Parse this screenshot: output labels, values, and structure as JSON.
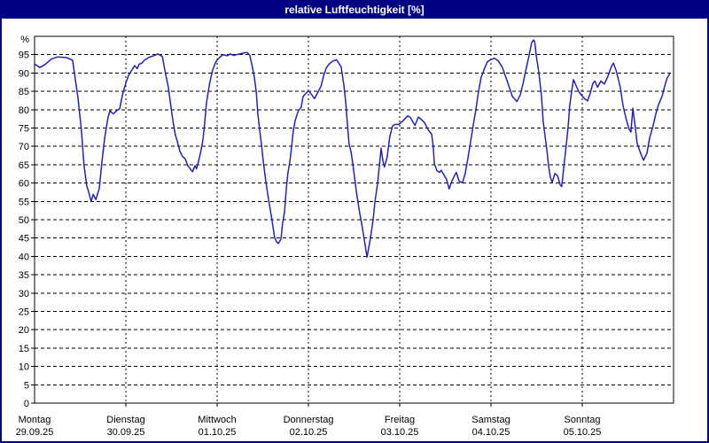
{
  "window": {
    "title": "relative Luftfeuchtigkeit [%]",
    "colors": {
      "title_bar_bg": "#000080",
      "title_text": "#ffffff",
      "window_border": "#000080",
      "plot_bg": "#ffffff",
      "grid": "#000000",
      "axis": "#000000",
      "curve": "#2222bb"
    }
  },
  "chart_data": {
    "type": "line",
    "title": "relative Luftfeuchtigkeit [%]",
    "xlabel": "",
    "ylabel": "%",
    "ylim": [
      0,
      100
    ],
    "yticks": [
      0,
      5,
      10,
      15,
      20,
      25,
      30,
      35,
      40,
      45,
      50,
      55,
      60,
      65,
      70,
      75,
      80,
      85,
      90,
      95
    ],
    "grid": true,
    "legend": "none",
    "x_axis": {
      "hours_per_day": 24,
      "range_hours": [
        0,
        168
      ],
      "days": [
        {
          "label": "Montag",
          "date": "29.09.25"
        },
        {
          "label": "Dienstag",
          "date": "30.09.25"
        },
        {
          "label": "Mittwoch",
          "date": "01.10.25"
        },
        {
          "label": "Donnerstag",
          "date": "02.10.25"
        },
        {
          "label": "Freitag",
          "date": "03.10.25"
        },
        {
          "label": "Samstag",
          "date": "04.10.25"
        },
        {
          "label": "Sonntag",
          "date": "05.10.25"
        }
      ]
    },
    "series": [
      {
        "name": "relative Luftfeuchtigkeit",
        "unit": "%",
        "color": "#2222bb",
        "points": [
          [
            0,
            92.5
          ],
          [
            1.4,
            91.5
          ],
          [
            2.6,
            92.2
          ],
          [
            4.4,
            93.8
          ],
          [
            6.1,
            94.4
          ],
          [
            8.4,
            94.2
          ],
          [
            10,
            93.5
          ],
          [
            10.7,
            88.4
          ],
          [
            11.4,
            83.4
          ],
          [
            12.3,
            74.5
          ],
          [
            13,
            64.9
          ],
          [
            13.7,
            59.3
          ],
          [
            14.2,
            57.7
          ],
          [
            14.9,
            54.9
          ],
          [
            15.4,
            56.9
          ],
          [
            16.1,
            55.5
          ],
          [
            17,
            58.5
          ],
          [
            17.7,
            65.7
          ],
          [
            18.4,
            72.1
          ],
          [
            18.9,
            75.3
          ],
          [
            19.3,
            77.7
          ],
          [
            19.8,
            79.7
          ],
          [
            20.7,
            78.9
          ],
          [
            21.7,
            79.8
          ],
          [
            22.4,
            80.3
          ],
          [
            23.1,
            84
          ],
          [
            24,
            87.3
          ],
          [
            24.7,
            89.3
          ],
          [
            25.4,
            90.5
          ],
          [
            26.3,
            92
          ],
          [
            27,
            91.2
          ],
          [
            27.5,
            92.4
          ],
          [
            28.2,
            92.7
          ],
          [
            28.9,
            93.5
          ],
          [
            30.1,
            94.3
          ],
          [
            31,
            94.6
          ],
          [
            32.4,
            95.2
          ],
          [
            33.6,
            94.5
          ],
          [
            34.3,
            90.5
          ],
          [
            35.2,
            85.9
          ],
          [
            35.7,
            82
          ],
          [
            36.3,
            77.5
          ],
          [
            37,
            73.1
          ],
          [
            37.5,
            71.5
          ],
          [
            38.2,
            68.7
          ],
          [
            38.9,
            67.3
          ],
          [
            39.6,
            66.6
          ],
          [
            40.3,
            64.7
          ],
          [
            41.5,
            63.1
          ],
          [
            42.2,
            64.7
          ],
          [
            42.6,
            63.9
          ],
          [
            43.3,
            66.7
          ],
          [
            43.8,
            69.1
          ],
          [
            44.3,
            72
          ],
          [
            44.7,
            76
          ],
          [
            45.2,
            81.9
          ],
          [
            45.7,
            85.1
          ],
          [
            46.1,
            87.5
          ],
          [
            46.8,
            90.7
          ],
          [
            47.5,
            92.7
          ],
          [
            48,
            93.5
          ],
          [
            48.7,
            94.3
          ],
          [
            49.6,
            95
          ],
          [
            50.6,
            94.7
          ],
          [
            51.5,
            95.2
          ],
          [
            52.4,
            94.8
          ],
          [
            53.4,
            95.1
          ],
          [
            54.3,
            95.3
          ],
          [
            55.2,
            95.5
          ],
          [
            55.9,
            95.6
          ],
          [
            56.6,
            94.8
          ],
          [
            57.3,
            91.5
          ],
          [
            57.8,
            88.7
          ],
          [
            58.3,
            84.7
          ],
          [
            58.7,
            79
          ],
          [
            59.2,
            74.2
          ],
          [
            59.7,
            70.2
          ],
          [
            60.1,
            66.2
          ],
          [
            60.8,
            60.5
          ],
          [
            61.5,
            55.7
          ],
          [
            62.4,
            50.1
          ],
          [
            63.1,
            45.2
          ],
          [
            63.6,
            44
          ],
          [
            64.1,
            43.5
          ],
          [
            64.8,
            44.8
          ],
          [
            65.2,
            48.9
          ],
          [
            65.7,
            52.1
          ],
          [
            66.2,
            58.6
          ],
          [
            66.6,
            62.6
          ],
          [
            67.1,
            65.8
          ],
          [
            67.6,
            70
          ],
          [
            68,
            74
          ],
          [
            68.5,
            77
          ],
          [
            69,
            78.6
          ],
          [
            69.4,
            79.8
          ],
          [
            70.1,
            80.6
          ],
          [
            70.6,
            83.6
          ],
          [
            71.3,
            84.4
          ],
          [
            72,
            85.2
          ],
          [
            72.9,
            84
          ],
          [
            73.6,
            83
          ],
          [
            74.3,
            84.4
          ],
          [
            75.3,
            86.4
          ],
          [
            76,
            89.3
          ],
          [
            76.7,
            91.4
          ],
          [
            77.4,
            92.4
          ],
          [
            78.3,
            93.2
          ],
          [
            79.4,
            93.6
          ],
          [
            80.6,
            91.7
          ],
          [
            81.3,
            86.8
          ],
          [
            81.8,
            82
          ],
          [
            82.3,
            75.4
          ],
          [
            82.7,
            70.6
          ],
          [
            83.2,
            68.5
          ],
          [
            83.7,
            65
          ],
          [
            84.6,
            57.7
          ],
          [
            85.3,
            52.9
          ],
          [
            86,
            48.9
          ],
          [
            86.7,
            44.5
          ],
          [
            87.4,
            39.8
          ],
          [
            88.3,
            45
          ],
          [
            89,
            50
          ],
          [
            89.5,
            55
          ],
          [
            90.2,
            60
          ],
          [
            90.6,
            64
          ],
          [
            91.1,
            69.5
          ],
          [
            91.6,
            66
          ],
          [
            92,
            64.4
          ],
          [
            92.7,
            67
          ],
          [
            93.4,
            72.6
          ],
          [
            94.1,
            75.5
          ],
          [
            94.8,
            76
          ],
          [
            95.8,
            76
          ],
          [
            96.9,
            77
          ],
          [
            98.1,
            78.3
          ],
          [
            98.8,
            77.9
          ],
          [
            100,
            75.7
          ],
          [
            100.9,
            78
          ],
          [
            101.6,
            77.4
          ],
          [
            102.5,
            76.5
          ],
          [
            103.5,
            74.5
          ],
          [
            104.4,
            73.3
          ],
          [
            104.8,
            70
          ],
          [
            105.1,
            65.3
          ],
          [
            105.8,
            63.3
          ],
          [
            106.5,
            62.9
          ],
          [
            106.9,
            63.5
          ],
          [
            107.6,
            62.3
          ],
          [
            108.3,
            61
          ],
          [
            109,
            58.4
          ],
          [
            109.7,
            60.5
          ],
          [
            110.4,
            62
          ],
          [
            110.9,
            62.9
          ],
          [
            111.6,
            60.5
          ],
          [
            112.5,
            60.1
          ],
          [
            113.2,
            62.5
          ],
          [
            113.9,
            66.5
          ],
          [
            114.6,
            71
          ],
          [
            115.3,
            75.5
          ],
          [
            116,
            79.8
          ],
          [
            116.7,
            84.7
          ],
          [
            117.4,
            88.7
          ],
          [
            118.4,
            91.5
          ],
          [
            119.1,
            93.1
          ],
          [
            120,
            93.7
          ],
          [
            120.9,
            94
          ],
          [
            121.9,
            93.3
          ],
          [
            123,
            91.5
          ],
          [
            124.4,
            87.4
          ],
          [
            125.6,
            83.7
          ],
          [
            126.8,
            82.2
          ],
          [
            127.7,
            84
          ],
          [
            128.4,
            87
          ],
          [
            129.1,
            90.5
          ],
          [
            130,
            94.7
          ],
          [
            130.7,
            98.3
          ],
          [
            131.2,
            99
          ],
          [
            131.5,
            98.4
          ],
          [
            131.9,
            94.7
          ],
          [
            132.6,
            89.9
          ],
          [
            133.3,
            83.5
          ],
          [
            133.7,
            77
          ],
          [
            134.2,
            73
          ],
          [
            134.7,
            69
          ],
          [
            135.1,
            65
          ],
          [
            135.6,
            61.5
          ],
          [
            136.1,
            60.2
          ],
          [
            136.8,
            62.6
          ],
          [
            137.5,
            62
          ],
          [
            138.2,
            59.5
          ],
          [
            138.6,
            59
          ],
          [
            139.3,
            65.8
          ],
          [
            139.8,
            70.5
          ],
          [
            140.3,
            75.5
          ],
          [
            140.7,
            81
          ],
          [
            141.2,
            85
          ],
          [
            141.7,
            88.2
          ],
          [
            142.4,
            86.5
          ],
          [
            143.1,
            84.9
          ],
          [
            144,
            83.7
          ],
          [
            144.7,
            82.9
          ],
          [
            145.4,
            82.4
          ],
          [
            146.1,
            84.5
          ],
          [
            146.8,
            87.2
          ],
          [
            147.3,
            87.8
          ],
          [
            148,
            86.1
          ],
          [
            148.9,
            87.8
          ],
          [
            149.8,
            87
          ],
          [
            150.7,
            89
          ],
          [
            151.7,
            91.8
          ],
          [
            152.2,
            92.7
          ],
          [
            152.9,
            90.7
          ],
          [
            154,
            86.1
          ],
          [
            154.7,
            81.2
          ],
          [
            155.6,
            77.2
          ],
          [
            156.3,
            74.7
          ],
          [
            156.8,
            73.9
          ],
          [
            157.3,
            80.4
          ],
          [
            158,
            74.7
          ],
          [
            158.4,
            71
          ],
          [
            159.2,
            68.5
          ],
          [
            160.1,
            66.2
          ],
          [
            161,
            68.2
          ],
          [
            161.7,
            72.3
          ],
          [
            162.6,
            75.5
          ],
          [
            163.3,
            78.7
          ],
          [
            164,
            81.2
          ],
          [
            165,
            83.7
          ],
          [
            165.6,
            86.1
          ],
          [
            166.3,
            88.6
          ],
          [
            167,
            89.8
          ]
        ]
      }
    ]
  }
}
